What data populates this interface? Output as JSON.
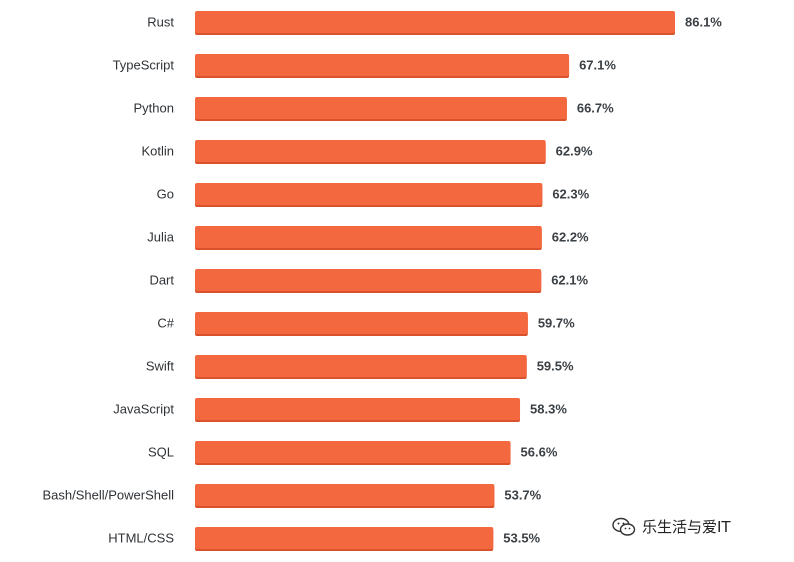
{
  "chart_data": {
    "type": "bar",
    "orientation": "horizontal",
    "categories": [
      "Rust",
      "TypeScript",
      "Python",
      "Kotlin",
      "Go",
      "Julia",
      "Dart",
      "C#",
      "Swift",
      "JavaScript",
      "SQL",
      "Bash/Shell/PowerShell",
      "HTML/CSS"
    ],
    "values": [
      86.1,
      67.1,
      66.7,
      62.9,
      62.3,
      62.2,
      62.1,
      59.7,
      59.5,
      58.3,
      56.6,
      53.7,
      53.5
    ],
    "value_labels": [
      "86.1%",
      "67.1%",
      "66.7%",
      "62.9%",
      "62.3%",
      "62.2%",
      "62.1%",
      "59.7%",
      "59.5%",
      "58.3%",
      "56.6%",
      "53.7%",
      "53.5%"
    ],
    "value_unit": "%",
    "title": "",
    "xlabel": "",
    "ylabel": "",
    "grid": false,
    "bar_color": "#f4683f",
    "bar_shadow_color": "#d9522c"
  },
  "watermark": {
    "icon": "wechat-icon",
    "text": "乐生活与爱IT"
  }
}
